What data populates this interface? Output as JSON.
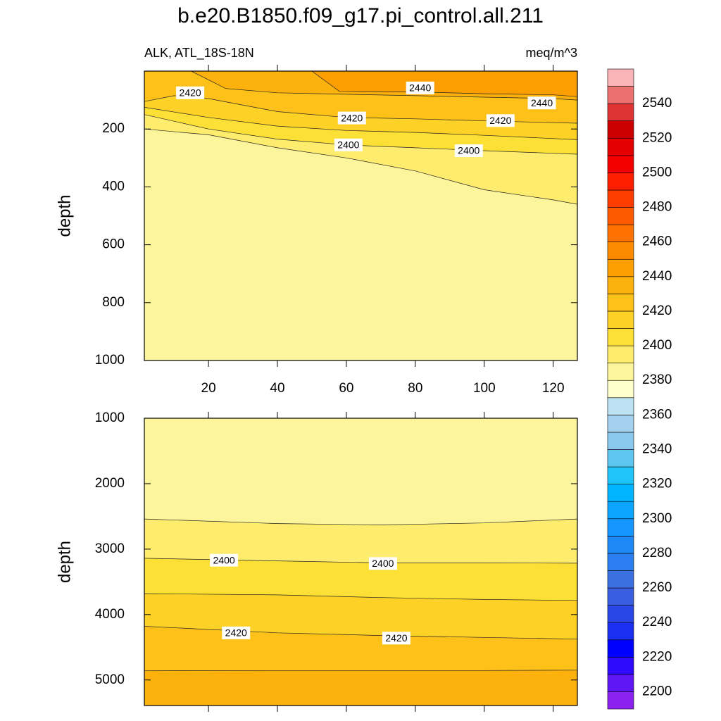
{
  "header": {
    "title": "b.e20.B1850.f09_g17.pi_control.all.211",
    "left_string": "ALK, ATL_18S-18N",
    "right_string": "meq/m^3"
  },
  "colorbar": {
    "levels": [
      2190,
      2200,
      2210,
      2220,
      2230,
      2240,
      2250,
      2260,
      2270,
      2280,
      2290,
      2300,
      2310,
      2320,
      2330,
      2340,
      2350,
      2360,
      2370,
      2380,
      2390,
      2400,
      2410,
      2420,
      2430,
      2440,
      2450,
      2460,
      2470,
      2480,
      2490,
      2500,
      2510,
      2520,
      2530,
      2540,
      2550,
      2560
    ],
    "colors": [
      "#8b22f0",
      "#5f17f5",
      "#2f0aff",
      "#0000ff",
      "#1a2ff0",
      "#2a47e6",
      "#3a5ee0",
      "#3c6fe0",
      "#2a7ef0",
      "#1e88f5",
      "#1596ff",
      "#0aa5ff",
      "#00b4ff",
      "#20c4f8",
      "#5cc6f0",
      "#8ac8ee",
      "#a4d2ee",
      "#bde2f2",
      "#ffffcc",
      "#fdf59b",
      "#fdec6e",
      "#fde035",
      "#fdd126",
      "#fdc11a",
      "#fdb10c",
      "#fd9f00",
      "#fd8a00",
      "#fd7200",
      "#fd5a00",
      "#fd3c00",
      "#fd1e00",
      "#f50000",
      "#e40000",
      "#cc0000",
      "#dd3333",
      "#eb7070",
      "#f8b4b8"
    ],
    "ticks": [
      2200,
      2220,
      2240,
      2260,
      2280,
      2300,
      2320,
      2340,
      2360,
      2380,
      2400,
      2420,
      2440,
      2460,
      2480,
      2500,
      2520,
      2540
    ]
  },
  "chart_data": [
    {
      "type": "contour",
      "ylabel": "depth",
      "xlim": [
        1.4,
        127
      ],
      "ylim": [
        0,
        1000
      ],
      "y_reversed": true,
      "xticks": [
        20,
        40,
        60,
        80,
        100,
        120
      ],
      "yticks": [
        200,
        400,
        600,
        800,
        1000
      ],
      "base_level": 2380,
      "fill_side": "top",
      "contours": [
        {
          "level": 2390,
          "x": [
            1.4,
            20,
            40,
            60,
            80,
            100,
            120,
            127
          ],
          "y": [
            200,
            220,
            265,
            300,
            345,
            410,
            445,
            460
          ]
        },
        {
          "level": 2400,
          "x": [
            1.4,
            20,
            40,
            60,
            80,
            100,
            127
          ],
          "y": [
            150,
            200,
            235,
            255,
            265,
            275,
            287
          ]
        },
        {
          "level": 2410,
          "x": [
            1.4,
            20,
            40,
            60,
            80,
            100,
            127
          ],
          "y": [
            125,
            160,
            190,
            205,
            212,
            222,
            237
          ]
        },
        {
          "level": 2420,
          "x": [
            1.4,
            10,
            20,
            40,
            60,
            80,
            100,
            127
          ],
          "y": [
            105,
            85,
            95,
            140,
            160,
            165,
            172,
            180
          ]
        },
        {
          "level": 2430,
          "x": [
            15,
            25,
            40,
            60,
            80,
            100,
            120,
            127
          ],
          "y": [
            0,
            60,
            75,
            80,
            85,
            90,
            95,
            100
          ]
        },
        {
          "level": 2440,
          "x": [
            50,
            58,
            80,
            100,
            120,
            127
          ],
          "y": [
            0,
            70,
            72,
            78,
            82,
            88
          ]
        }
      ],
      "contour_labels": [
        {
          "x": 14.7,
          "y": 75,
          "level": 2420
        },
        {
          "x": 81.4,
          "y": 58,
          "level": 2440
        },
        {
          "x": 61.6,
          "y": 162,
          "level": 2420
        },
        {
          "x": 116.7,
          "y": 110,
          "level": 2440
        },
        {
          "x": 104.7,
          "y": 171,
          "level": 2420
        },
        {
          "x": 60.6,
          "y": 255,
          "level": 2400
        },
        {
          "x": 95.5,
          "y": 275,
          "level": 2400
        }
      ]
    },
    {
      "type": "contour",
      "ylabel": "depth",
      "xlim": [
        1.4,
        127
      ],
      "ylim": [
        1000,
        5390
      ],
      "y_reversed": true,
      "xtick_marks": [
        20,
        40,
        60,
        80,
        100,
        120
      ],
      "yticks": [
        1000,
        2000,
        3000,
        4000,
        5000
      ],
      "base_level": 2380,
      "fill_side": "bottom",
      "contours": [
        {
          "level": 2390,
          "x": [
            1.4,
            40,
            70,
            100,
            127
          ],
          "y": [
            2540,
            2610,
            2630,
            2600,
            2540
          ]
        },
        {
          "level": 2400,
          "x": [
            1.4,
            40,
            70,
            100,
            127
          ],
          "y": [
            3140,
            3180,
            3210,
            3210,
            3215
          ]
        },
        {
          "level": 2410,
          "x": [
            1.4,
            40,
            70,
            100,
            127
          ],
          "y": [
            3680,
            3700,
            3740,
            3770,
            3785
          ]
        },
        {
          "level": 2420,
          "x": [
            1.4,
            40,
            70,
            100,
            127
          ],
          "y": [
            4180,
            4280,
            4320,
            4350,
            4375
          ]
        },
        {
          "level": 2430,
          "x": [
            1.4,
            40,
            70,
            100,
            127
          ],
          "y": [
            4860,
            4855,
            4855,
            4855,
            4850
          ]
        }
      ],
      "contour_labels": [
        {
          "x": 24.5,
          "y": 3170,
          "level": 2400
        },
        {
          "x": 70.6,
          "y": 3220,
          "level": 2400
        },
        {
          "x": 28,
          "y": 4280,
          "level": 2420
        },
        {
          "x": 74.5,
          "y": 4360,
          "level": 2420
        }
      ]
    }
  ]
}
